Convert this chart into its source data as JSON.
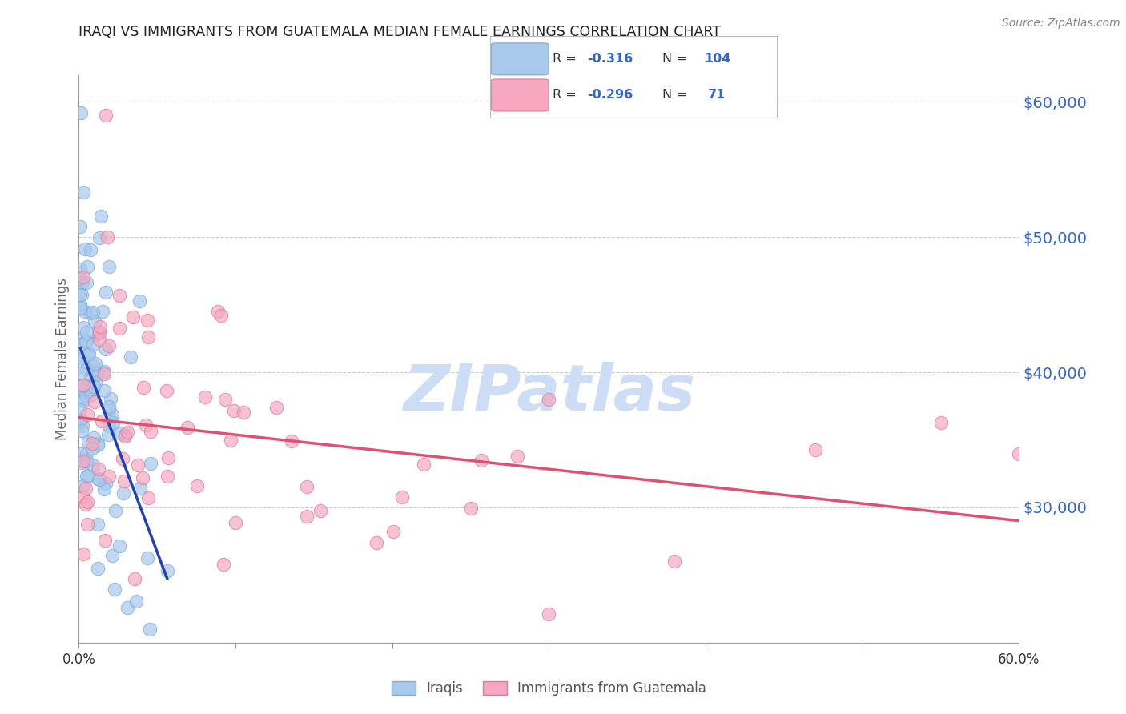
{
  "title": "IRAQI VS IMMIGRANTS FROM GUATEMALA MEDIAN FEMALE EARNINGS CORRELATION CHART",
  "source": "Source: ZipAtlas.com",
  "ylabel": "Median Female Earnings",
  "x_min": 0.0,
  "x_max": 0.6,
  "y_min": 20000,
  "y_max": 62000,
  "y_ticks": [
    30000,
    40000,
    50000,
    60000
  ],
  "y_tick_labels": [
    "$30,000",
    "$40,000",
    "$50,000",
    "$60,000"
  ],
  "x_ticks": [
    0.0,
    0.1,
    0.2,
    0.3,
    0.4,
    0.5,
    0.6
  ],
  "x_tick_labels": [
    "0.0%",
    "",
    "",
    "",
    "",
    "",
    "60.0%"
  ],
  "iraqis_color": "#a8c8ec",
  "iraqis_edge_color": "#7aabda",
  "guatemalans_color": "#f5a8c0",
  "guatemalans_edge_color": "#e07898",
  "trendline_iraqis_color": "#2244aa",
  "trendline_guatemalans_color": "#e05070",
  "watermark_color": "#ccddf5",
  "background_color": "#ffffff",
  "grid_color": "#cccccc",
  "title_color": "#222222",
  "axis_label_color": "#666666",
  "right_ytick_color": "#3366cc",
  "source_color": "#888888",
  "legend_r_color": "#3366cc",
  "legend_n_color": "#3366cc",
  "legend_label_color": "#333333"
}
